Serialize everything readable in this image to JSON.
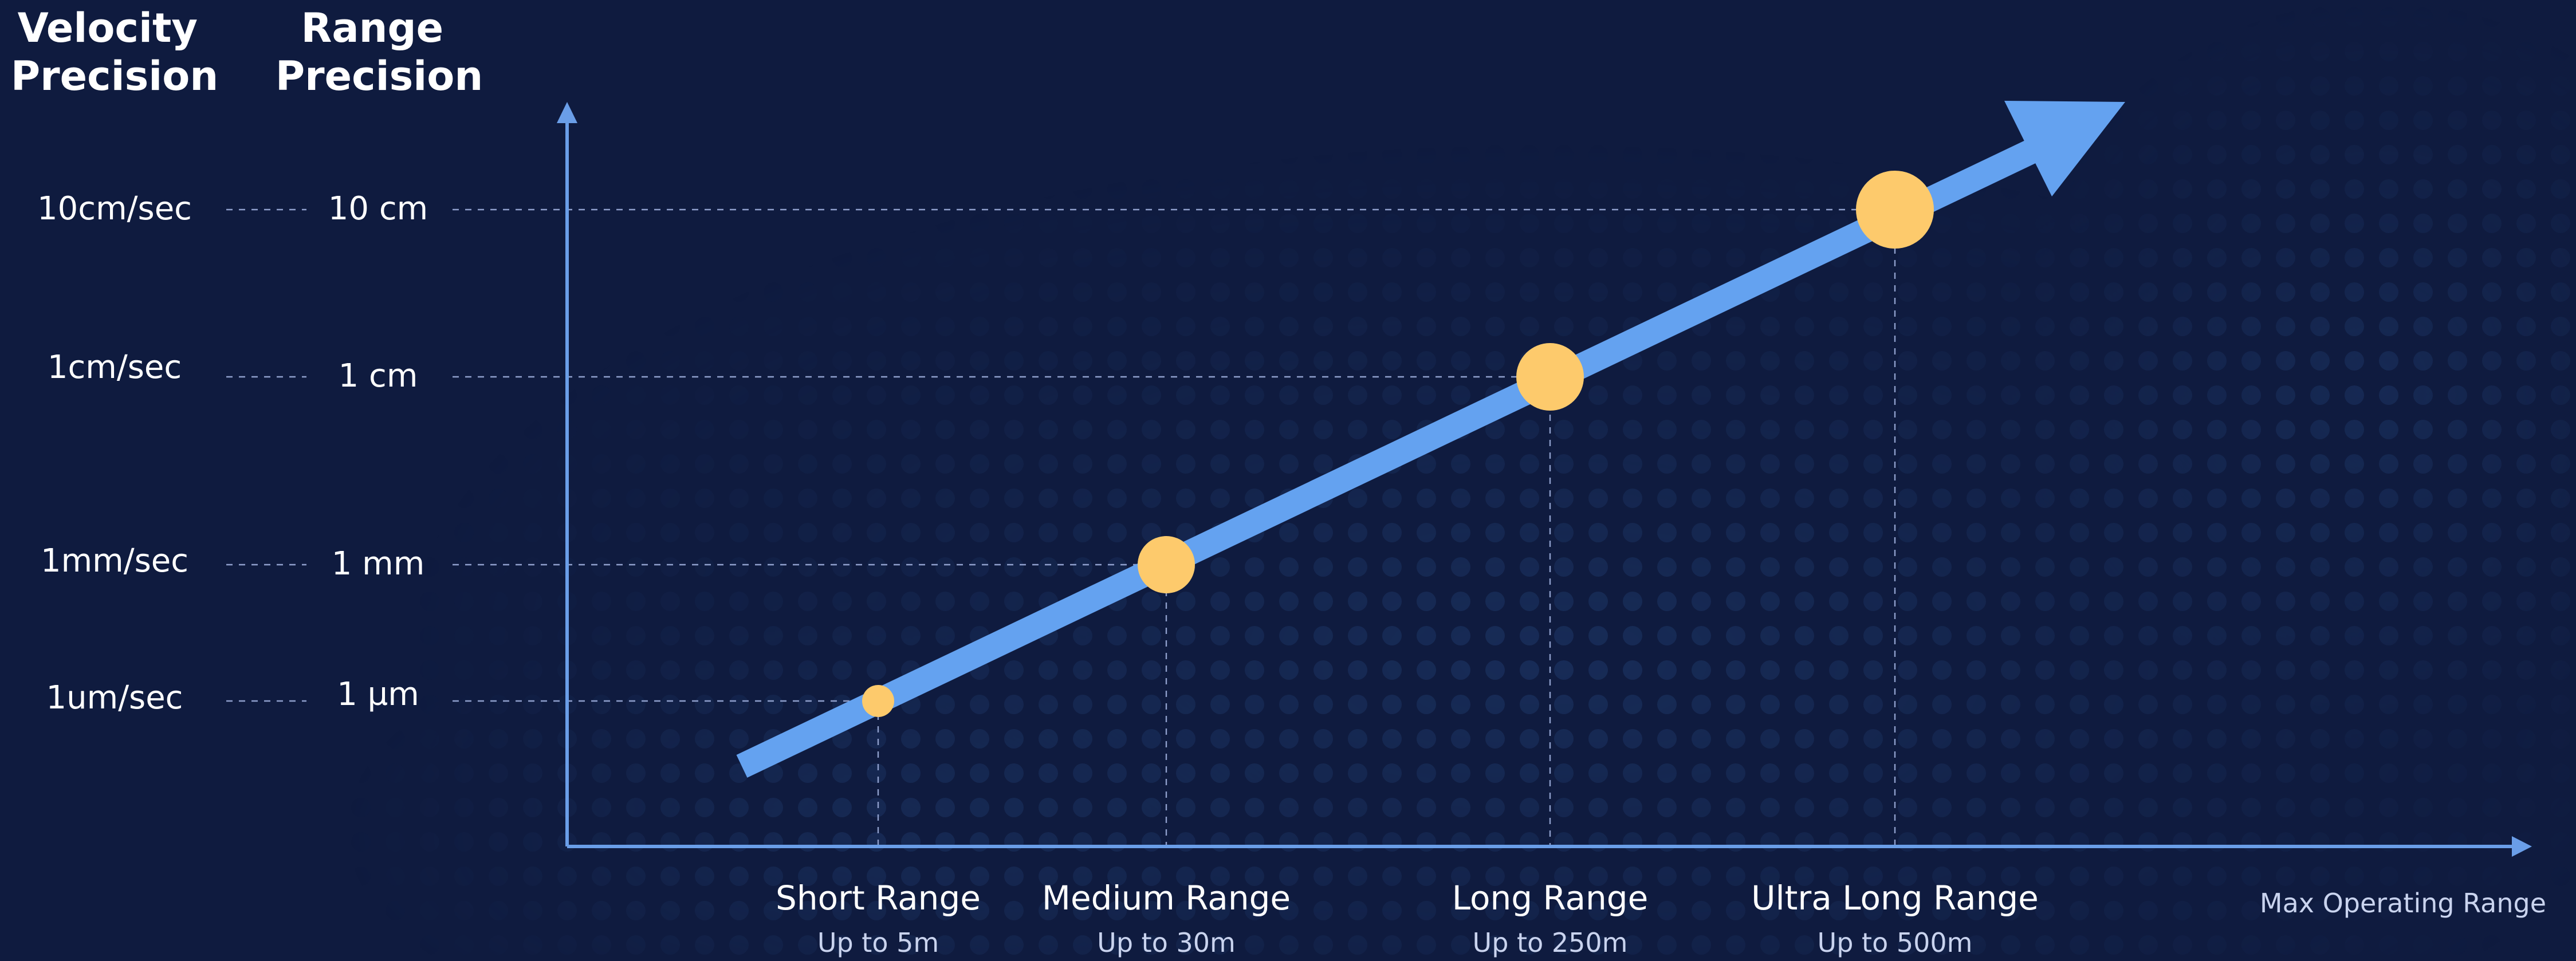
{
  "headers": {
    "velocity": [
      "Velocity",
      "Precision"
    ],
    "range": [
      "Range",
      "Precision"
    ]
  },
  "levels": [
    {
      "velocity": "10cm/sec",
      "range": "10 cm"
    },
    {
      "velocity": "1cm/sec",
      "range": "1 cm"
    },
    {
      "velocity": "1mm/sec",
      "range": "1 mm"
    },
    {
      "velocity": "1um/sec",
      "range": "1 µm"
    }
  ],
  "categories": [
    {
      "name": "Short Range",
      "sub": "Up to 5m"
    },
    {
      "name": "Medium Range",
      "sub": "Up to 30m"
    },
    {
      "name": "Long Range",
      "sub": "Up to 250m"
    },
    {
      "name": "Ultra Long Range",
      "sub": "Up to 500m"
    }
  ],
  "x_axis_label": "Max Operating Range",
  "colors": {
    "background": "#0f1b3f",
    "axis": "#6a9ee8",
    "arrow": "#64a2f0",
    "marker": "#fdca6c",
    "guide": "#8f9fcc"
  }
}
